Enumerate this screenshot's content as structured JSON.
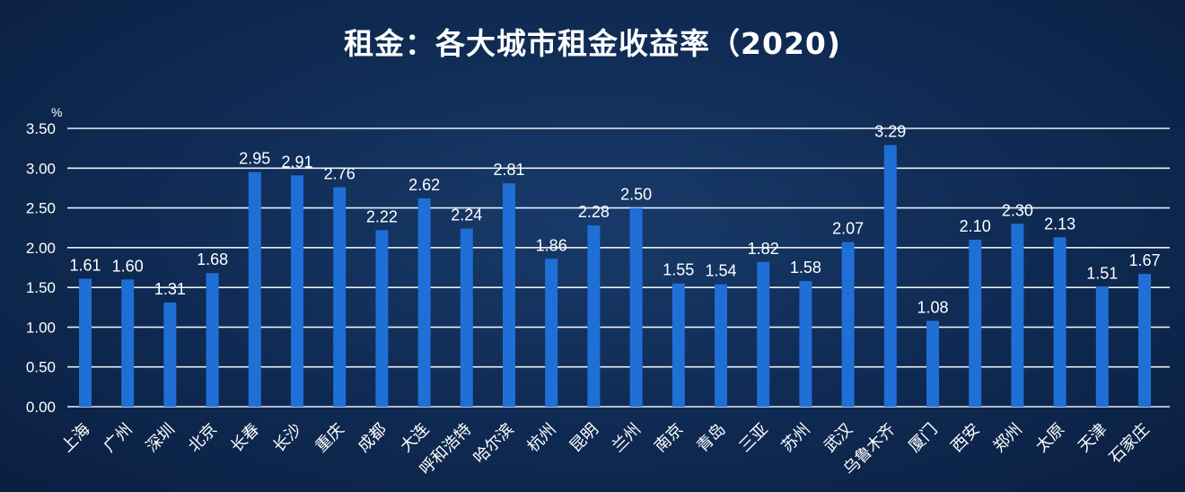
{
  "chart_data": {
    "type": "bar",
    "title": "租金：各大城市租金收益率（2020)",
    "unit": "%",
    "ylim": [
      0,
      3.5
    ],
    "yticks": [
      "0.00",
      "0.50",
      "1.00",
      "1.50",
      "2.00",
      "2.50",
      "3.00",
      "3.50"
    ],
    "grid": true,
    "categories": [
      "上海",
      "广州",
      "深圳",
      "北京",
      "长春",
      "长沙",
      "重庆",
      "成都",
      "大连",
      "呼和浩特",
      "哈尔滨",
      "杭州",
      "昆明",
      "兰州",
      "南京",
      "青岛",
      "三亚",
      "苏州",
      "武汉",
      "乌鲁木齐",
      "厦门",
      "西安",
      "郑州",
      "太原",
      "天津",
      "石家庄"
    ],
    "values": [
      1.61,
      1.6,
      1.31,
      1.68,
      2.95,
      2.91,
      2.76,
      2.22,
      2.62,
      2.24,
      2.81,
      1.86,
      2.28,
      2.5,
      1.55,
      1.54,
      1.82,
      1.58,
      2.07,
      3.29,
      1.08,
      2.1,
      2.3,
      2.13,
      1.51,
      1.67
    ],
    "value_labels": [
      "1.61",
      "1.60",
      "1.31",
      "1.68",
      "2.95",
      "2.91",
      "2.76",
      "2.22",
      "2.62",
      "2.24",
      "2.81",
      "1.86",
      "2.28",
      "2.50",
      "1.55",
      "1.54",
      "1.82",
      "1.58",
      "2.07",
      "3.29",
      "1.08",
      "2.10",
      "2.30",
      "2.13",
      "1.51",
      "1.67"
    ],
    "bar_color": "#1f6fd6",
    "background_color": "#0f2a52"
  }
}
